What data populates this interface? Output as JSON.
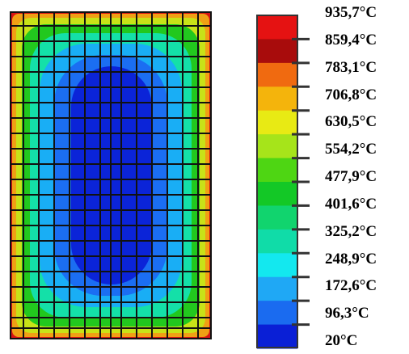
{
  "title": "",
  "colormap": [
    "#0a1fd6",
    "#1a6bf0",
    "#1fa8f5",
    "#13e8ef",
    "#10dca8",
    "#11d46e",
    "#13c826",
    "#4ed613",
    "#a6e41a",
    "#e8ea14",
    "#f4b40c",
    "#f06a10",
    "#a80c0c",
    "#e51212"
  ],
  "legend_labels": [
    "935,7°C",
    "859,4°C",
    "783,1°C",
    "706,8°C",
    "630,5°C",
    "554,2°C",
    "477,9°C",
    "401,6°C",
    "325,2°C",
    "248,9°C",
    "172,6°C",
    "96,3°C",
    "20°C"
  ]
}
